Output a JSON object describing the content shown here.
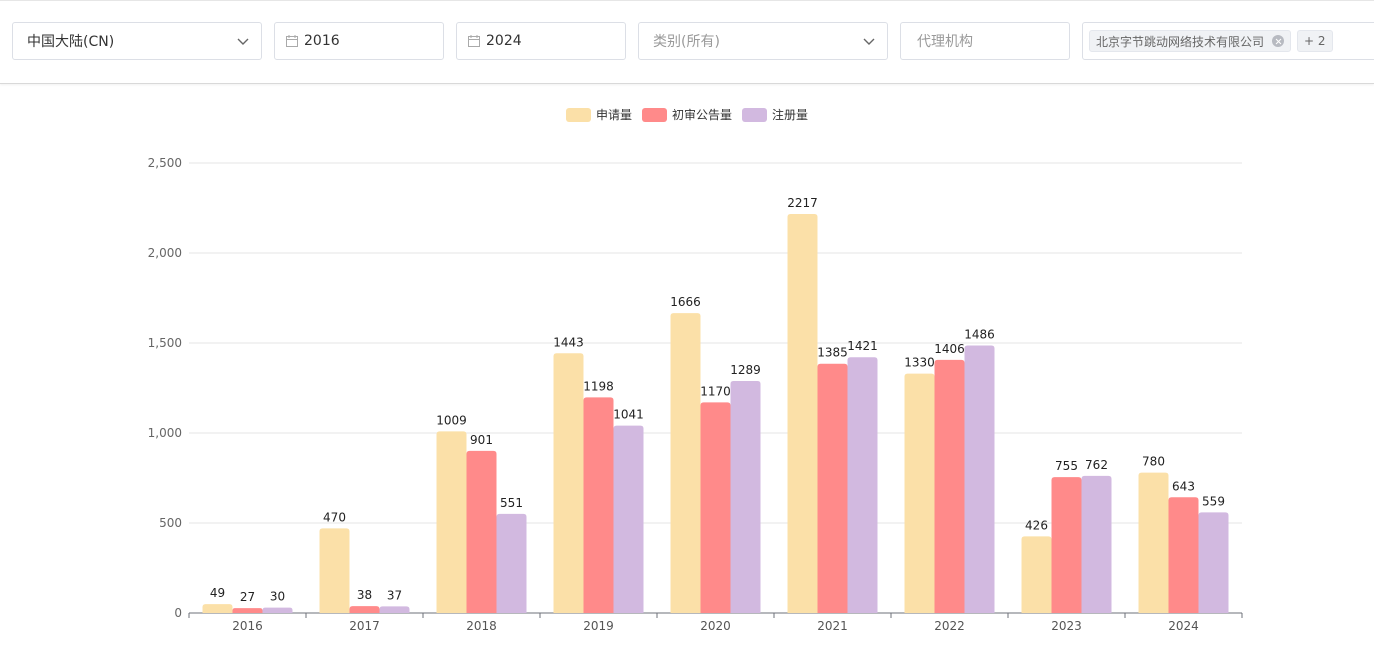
{
  "filters": {
    "region": "中国大陆(CN)",
    "start_year": "2016",
    "end_year": "2024",
    "category_placeholder": "类别(所有)",
    "agency_placeholder": "代理机构",
    "applicant_tag": "北京字节跳动网络技术有限公司",
    "applicant_more": "+ 2"
  },
  "colors": {
    "申请量": "#fbe0a8",
    "初审公告量": "#ff8a8a",
    "注册量": "#d2b9e0"
  },
  "chart_data": {
    "type": "bar",
    "title": "",
    "xlabel": "",
    "ylabel": "",
    "categories": [
      "2016",
      "2017",
      "2018",
      "2019",
      "2020",
      "2021",
      "2022",
      "2023",
      "2024"
    ],
    "series": [
      {
        "name": "申请量",
        "color": "#fbe0a8",
        "values": [
          49,
          470,
          1009,
          1443,
          1666,
          2217,
          1330,
          426,
          780
        ]
      },
      {
        "name": "初审公告量",
        "color": "#ff8a8a",
        "values": [
          27,
          38,
          901,
          1198,
          1170,
          1385,
          1406,
          755,
          643
        ]
      },
      {
        "name": "注册量",
        "color": "#d2b9e0",
        "values": [
          30,
          37,
          551,
          1041,
          1289,
          1421,
          1486,
          762,
          559
        ]
      }
    ],
    "ylim": [
      0,
      2500
    ],
    "yticks": [
      0,
      500,
      1000,
      1500,
      2000,
      2500
    ],
    "ytick_labels": [
      "0",
      "500",
      "1,000",
      "1,500",
      "2,000",
      "2,500"
    ],
    "grid": true,
    "legend_position": "top-center",
    "data_labels": true
  }
}
